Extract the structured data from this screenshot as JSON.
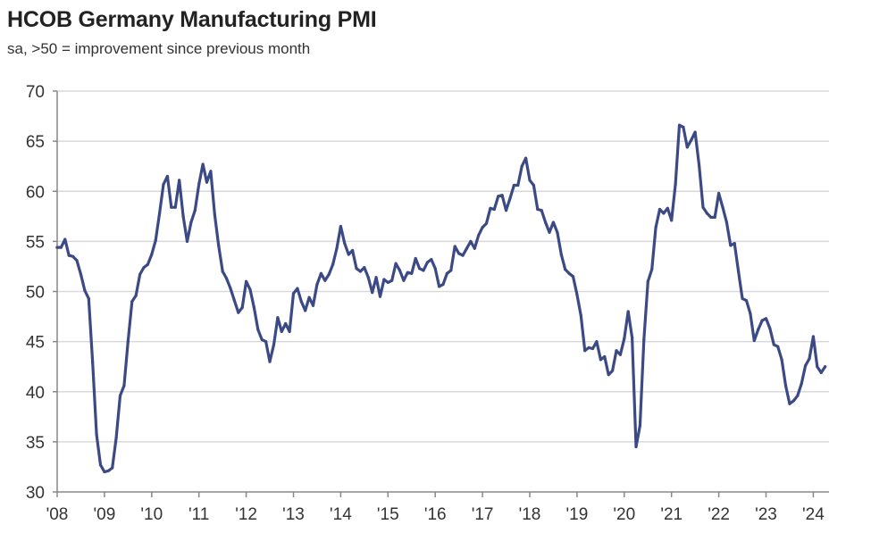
{
  "title": "HCOB Germany Manufacturing PMI",
  "subtitle": "sa, >50 = improvement since previous month",
  "chart_data": {
    "type": "line",
    "title": "HCOB Germany Manufacturing PMI",
    "subtitle": "sa, >50 = improvement since previous month",
    "xlabel": "",
    "ylabel": "",
    "ylim": [
      30,
      70
    ],
    "yticks": [
      30,
      35,
      40,
      45,
      50,
      55,
      60,
      65,
      70
    ],
    "xticks": [
      "'08",
      "'09",
      "'10",
      "'11",
      "'12",
      "'13",
      "'14",
      "'15",
      "'16",
      "'17",
      "'18",
      "'19",
      "'20",
      "'21",
      "'22",
      "'23",
      "'24"
    ],
    "grid": "horizontal",
    "line_color": "#3b4a85",
    "start": "2008-01",
    "frequency": "monthly",
    "series": [
      {
        "values": [
          54.4,
          54.4,
          55.2,
          53.6,
          53.5,
          53.1,
          51.7,
          50.1,
          49.3,
          42.9,
          35.7,
          32.7,
          32.0,
          32.1,
          32.4,
          35.4,
          39.6,
          40.6,
          45.0,
          49.0,
          49.6,
          51.7,
          52.4,
          52.7,
          53.7,
          55.1,
          57.8,
          60.7,
          61.5,
          58.4,
          58.4,
          61.1,
          57.5,
          55.0,
          56.9,
          58.1,
          60.7,
          62.7,
          60.9,
          62.0,
          57.7,
          54.6,
          52.0,
          51.3,
          50.3,
          49.1,
          47.9,
          48.4,
          51.0,
          50.2,
          48.4,
          46.2,
          45.2,
          45.0,
          43.0,
          44.7,
          47.4,
          46.0,
          46.8,
          46.0,
          49.8,
          50.3,
          49.0,
          48.1,
          49.4,
          48.6,
          50.7,
          51.8,
          51.1,
          51.7,
          52.7,
          54.3,
          56.5,
          54.8,
          53.7,
          54.1,
          52.3,
          52.0,
          52.4,
          51.4,
          49.9,
          51.4,
          49.5,
          51.2,
          50.9,
          51.1,
          52.8,
          52.1,
          51.1,
          51.9,
          51.8,
          53.3,
          52.3,
          52.1,
          52.9,
          53.2,
          52.3,
          50.5,
          50.7,
          51.8,
          52.1,
          54.5,
          53.8,
          53.6,
          54.3,
          55.0,
          54.3,
          55.6,
          56.4,
          56.8,
          58.3,
          58.2,
          59.5,
          59.6,
          58.1,
          59.3,
          60.6,
          60.6,
          62.5,
          63.3,
          61.1,
          60.6,
          58.2,
          58.1,
          56.9,
          55.9,
          56.9,
          55.9,
          53.7,
          52.2,
          51.8,
          51.5,
          49.7,
          47.6,
          44.1,
          44.4,
          44.3,
          45.0,
          43.2,
          43.5,
          41.7,
          42.1,
          44.1,
          43.7,
          45.3,
          48.0,
          45.4,
          34.5,
          36.6,
          45.2,
          51.0,
          52.2,
          56.4,
          58.2,
          57.8,
          58.3,
          57.1,
          60.7,
          66.6,
          66.4,
          64.4,
          65.1,
          65.9,
          62.6,
          58.4,
          57.8,
          57.4,
          57.4,
          59.8,
          58.4,
          56.9,
          54.6,
          54.8,
          52.0,
          49.3,
          49.1,
          47.8,
          45.1,
          46.2,
          47.1,
          47.3,
          46.3,
          44.7,
          44.5,
          43.2,
          40.6,
          38.8,
          39.1,
          39.6,
          40.8,
          42.6,
          43.3,
          45.5,
          42.5,
          41.9,
          42.5
        ]
      }
    ]
  }
}
